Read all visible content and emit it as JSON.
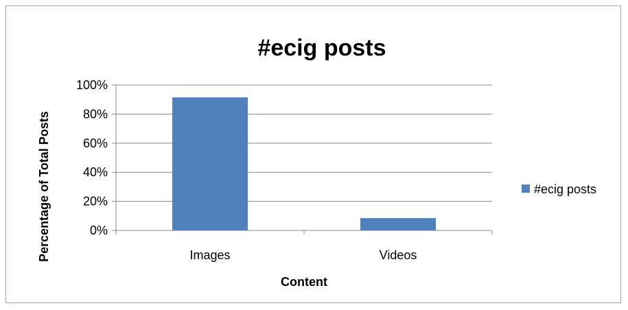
{
  "chart_data": {
    "type": "bar",
    "title": "#ecig posts",
    "xlabel": "Content",
    "ylabel": "Percentage of Total Posts",
    "categories": [
      "Images",
      "Videos"
    ],
    "series": [
      {
        "name": "#ecig posts",
        "values": [
          91.5,
          8.5
        ],
        "color": "#4f81bd"
      }
    ],
    "ylim": [
      0,
      100
    ],
    "yticks": [
      0,
      20,
      40,
      60,
      80,
      100
    ],
    "ytick_labels": [
      "0%",
      "20%",
      "40%",
      "60%",
      "80%",
      "100%"
    ],
    "grid": true,
    "legend_position": "right"
  }
}
